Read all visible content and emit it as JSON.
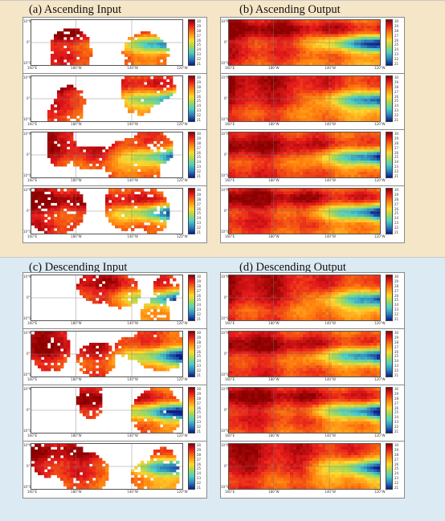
{
  "quadrants": {
    "a": {
      "title": "(a) Ascending Input"
    },
    "b": {
      "title": "(b) Ascending Output"
    },
    "c": {
      "title": "(c) Descending Input"
    },
    "d": {
      "title": "(d) Descending Output"
    }
  },
  "map_ticks": {
    "lat_north": "10°N",
    "lat_eq": "0°",
    "lat_south": "10°S",
    "lon_1": "160°E",
    "lon_2": "180°W",
    "lon_3": "140°W",
    "lon_4": "120°W"
  },
  "colorbar_labels": [
    "30",
    "29",
    "28",
    "27",
    "26",
    "25",
    "24",
    "23",
    "22",
    "21"
  ],
  "colors": {
    "top_background": "#f6e6c8",
    "bottom_background": "#dceaf3"
  }
}
